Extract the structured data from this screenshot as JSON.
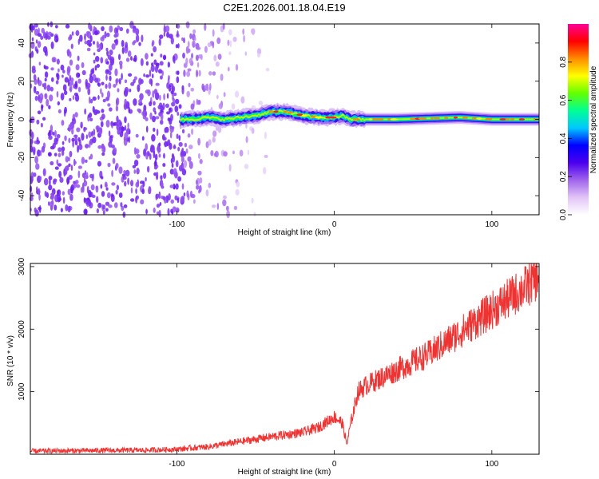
{
  "title": "C2E1.2026.001.18.04.E19",
  "chart_data": [
    {
      "type": "heatmap",
      "title": "C2E1.2026.001.18.04.E19",
      "xlabel": "Height of straight line (km)",
      "ylabel": "Frequency (Hz)",
      "xlim": [
        -193,
        130
      ],
      "ylim": [
        -50,
        50
      ],
      "x_ticks": [
        -100,
        0,
        100
      ],
      "y_ticks": [
        40,
        20,
        0,
        -20,
        -40
      ],
      "colorbar": {
        "label": "Normalized spectral amplitude",
        "range": [
          0,
          1
        ],
        "ticks": [
          0.0,
          0.2,
          0.4,
          0.6,
          0.8
        ],
        "colormap": [
          "#ffffff",
          "#e2c4f6",
          "#a064ec",
          "#4b00ee",
          "#0000ff",
          "#00c8ff",
          "#00ff96",
          "#64ff00",
          "#ffff00",
          "#ff8c00",
          "#ff0000",
          "#ff0096"
        ]
      },
      "features": {
        "noise_region_km": [
          -193,
          -95
        ],
        "fade_region_km": [
          -95,
          -40
        ],
        "signal_start_km": -98,
        "signal_center_hz": [
          [
            -98,
            0
          ],
          [
            -90,
            0
          ],
          [
            -80,
            1
          ],
          [
            -70,
            0
          ],
          [
            -60,
            1
          ],
          [
            -50,
            2
          ],
          [
            -40,
            4
          ],
          [
            -30,
            4
          ],
          [
            -20,
            2
          ],
          [
            -10,
            1
          ],
          [
            0,
            1
          ],
          [
            5,
            2
          ],
          [
            10,
            0
          ],
          [
            20,
            0
          ],
          [
            40,
            0
          ],
          [
            80,
            1
          ],
          [
            100,
            0
          ],
          [
            130,
            0
          ]
        ]
      }
    },
    {
      "type": "line",
      "xlabel": "Height of straight line (km)",
      "ylabel": "SNR (10 * v/v)",
      "xlim": [
        -193,
        130
      ],
      "ylim": [
        0,
        3050
      ],
      "x_ticks": [
        -100,
        0,
        100
      ],
      "y_ticks": [
        1000,
        2000,
        3000
      ],
      "series": [
        {
          "name": "SNR",
          "color": "#ee3333",
          "points": [
            [
              -193,
              50
            ],
            [
              -150,
              60
            ],
            [
              -120,
              65
            ],
            [
              -100,
              80
            ],
            [
              -80,
              120
            ],
            [
              -60,
              200
            ],
            [
              -40,
              280
            ],
            [
              -20,
              350
            ],
            [
              -10,
              430
            ],
            [
              0,
              600
            ],
            [
              5,
              500
            ],
            [
              8,
              150
            ],
            [
              10,
              450
            ],
            [
              15,
              1000
            ],
            [
              20,
              1100
            ],
            [
              40,
              1350
            ],
            [
              60,
              1600
            ],
            [
              80,
              1950
            ],
            [
              100,
              2300
            ],
            [
              120,
              2650
            ],
            [
              130,
              2850
            ]
          ]
        }
      ]
    }
  ]
}
